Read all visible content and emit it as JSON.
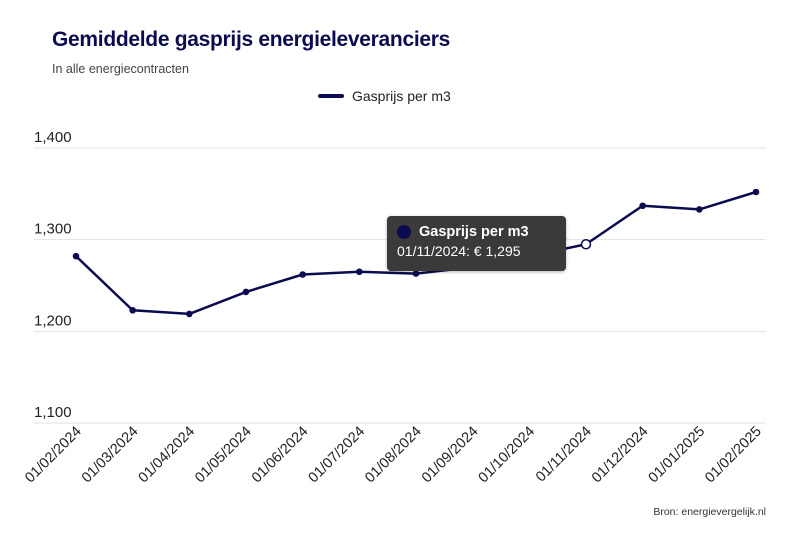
{
  "header": {
    "title": "Gemiddelde gasprijs energieleveranciers",
    "subtitle": "In alle energiecontracten"
  },
  "legend": {
    "label": "Gasprijs per m3"
  },
  "tooltip": {
    "series": "Gasprijs per m3",
    "value_text": "01/11/2024: € 1,295"
  },
  "source": "Bron: energievergelijk.nl",
  "colors": {
    "line": "#0b0c50",
    "grid": "#e3e3e3",
    "tooltip_bg": "#3a3a3a"
  },
  "chart_data": {
    "type": "line",
    "title": "Gemiddelde gasprijs energieleveranciers",
    "subtitle": "In alle energiecontracten",
    "categories": [
      "01/02/2024",
      "01/03/2024",
      "01/04/2024",
      "01/05/2024",
      "01/06/2024",
      "01/07/2024",
      "01/08/2024",
      "01/09/2024",
      "01/10/2024",
      "01/11/2024",
      "01/12/2024",
      "01/01/2025",
      "01/02/2025"
    ],
    "series": [
      {
        "name": "Gasprijs per m3",
        "values": [
          1.282,
          1.223,
          1.219,
          1.243,
          1.262,
          1.265,
          1.263,
          1.27,
          1.282,
          1.295,
          1.337,
          1.333,
          1.352
        ]
      }
    ],
    "yticks": [
      1.1,
      1.2,
      1.3,
      1.4
    ],
    "ytick_labels": [
      "1,100",
      "1,200",
      "1,300",
      "1,400"
    ],
    "ylim": [
      1.1,
      1.4
    ],
    "grid": true,
    "legend_position": "top-center",
    "highlighted_point": {
      "category": "01/11/2024",
      "value": 1.295
    }
  }
}
